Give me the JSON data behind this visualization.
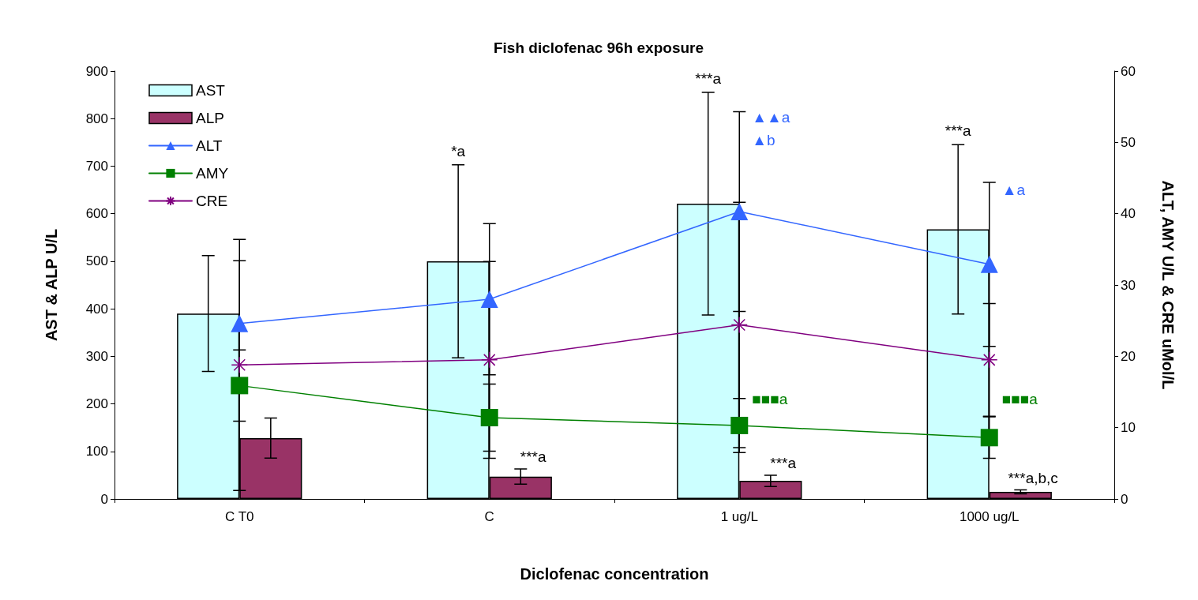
{
  "chart_data": {
    "type": "bar",
    "title": "Fish diclofenac 96h exposure",
    "xlabel": "Diclofenac concentration",
    "ylabel": "AST & ALP U/L",
    "y2label": "ALT, AMY U/L & CRE uMol/L",
    "categories": [
      "C T0",
      "C",
      "1 ug/L",
      "1000 ug/L"
    ],
    "series": [
      {
        "name": "AST",
        "color": "#ccffff",
        "values": [
          390,
          500,
          621,
          567
        ],
        "errors": [
          122,
          203,
          234,
          178
        ]
      },
      {
        "name": "ALP",
        "color": "#993366",
        "values": [
          128,
          47,
          38,
          15
        ],
        "errors": [
          42,
          16,
          12,
          4
        ]
      },
      {
        "name": "ALT",
        "type": "line",
        "axis": "y2",
        "color": "#3366ff",
        "marker": "triangle",
        "values": [
          24.6,
          28.0,
          40.3,
          32.9
        ],
        "errors": [
          8.8,
          10.6,
          14.0,
          11.5
        ]
      },
      {
        "name": "AMY",
        "type": "line",
        "axis": "y2",
        "color": "#008000",
        "marker": "square",
        "values": [
          15.9,
          11.4,
          10.3,
          8.6
        ],
        "errors": [
          5.0,
          4.7,
          3.8,
          2.9
        ]
      },
      {
        "name": "CRE",
        "type": "line",
        "axis": "y2",
        "color": "#800080",
        "marker": "cross",
        "values": [
          18.8,
          19.5,
          24.4,
          19.5
        ],
        "errors": [
          17.6,
          13.8,
          17.2,
          7.9
        ]
      }
    ],
    "annotations": [
      "*a",
      "***a",
      "***a",
      {
        "text": "***a",
        "x": "C",
        "y": 63
      },
      {
        "text": "***a",
        "x": "1 ug/L",
        "y": 50
      },
      {
        "text": "***a,b,c",
        "x": "1000 ug/L",
        "y": 19
      },
      {
        "text": "▲▲a",
        "x": "1 ug/L",
        "y": 803
      },
      {
        "text": "▲b",
        "x": "1 ug/L",
        "y": 755
      },
      {
        "text": "▲a",
        "x": "1000 ug/L",
        "y": 650
      },
      {
        "text": "■■■a",
        "x": "1 ug/L",
        "y": 210
      },
      {
        "text": "■■■a",
        "x": "1000 ug/L",
        "y": 210
      }
    ],
    "ylim": [
      0,
      900
    ],
    "yticks": [
      0,
      100,
      200,
      300,
      400,
      500,
      600,
      700,
      800,
      900
    ],
    "y2lim": [
      0,
      60
    ],
    "y2ticks": [
      0,
      10,
      20,
      30,
      40,
      50,
      60
    ],
    "grid": false,
    "legend": "top left"
  }
}
